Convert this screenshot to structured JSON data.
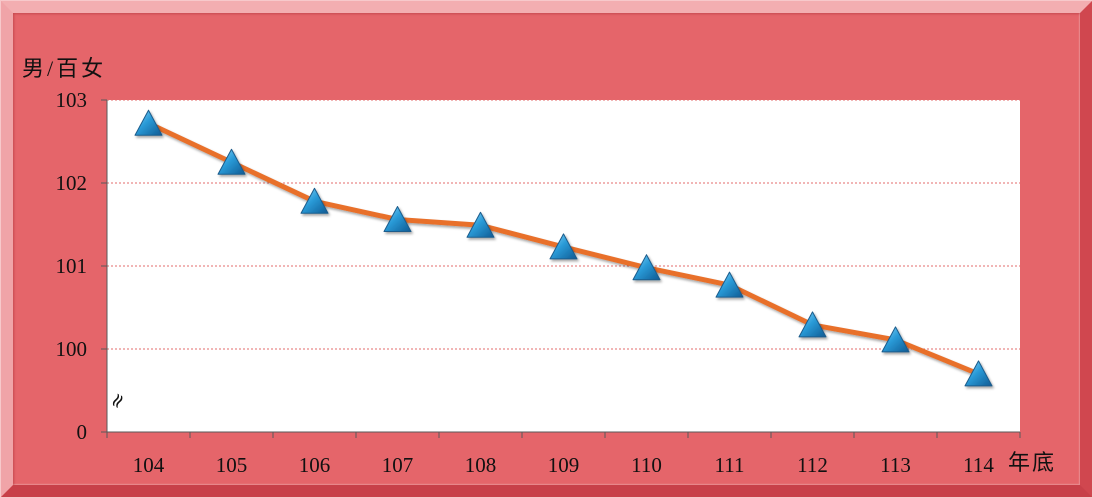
{
  "chart_data": {
    "type": "line",
    "xlabel": "年底",
    "ylabel": "男/百女",
    "categories": [
      "104",
      "105",
      "106",
      "107",
      "108",
      "109",
      "110",
      "111",
      "112",
      "113",
      "114"
    ],
    "series": [
      {
        "values": [
          102.72,
          102.25,
          101.78,
          101.56,
          101.49,
          101.23,
          100.98,
          100.77,
          100.29,
          100.11,
          99.7
        ],
        "marker": "triangle"
      }
    ],
    "ylim": [
      0,
      103
    ],
    "y_ticks": [
      {
        "value": 103,
        "label": "103"
      },
      {
        "value": 102,
        "label": "102"
      },
      {
        "value": 101,
        "label": "101"
      },
      {
        "value": 100,
        "label": "100"
      },
      {
        "value": 0,
        "label": "0"
      }
    ],
    "axis_break": {
      "symbol": "≈",
      "from": 0,
      "to": 99
    },
    "grid": true,
    "legend": "none",
    "colors": {
      "line": "#E8702B",
      "marker": "#2A9BD8",
      "marker_edge": "#1B5C8C",
      "plot_background": "#FFFFFF",
      "gridline": "#E36B6B",
      "axis": "#595959",
      "frame": "#E5656A"
    }
  }
}
